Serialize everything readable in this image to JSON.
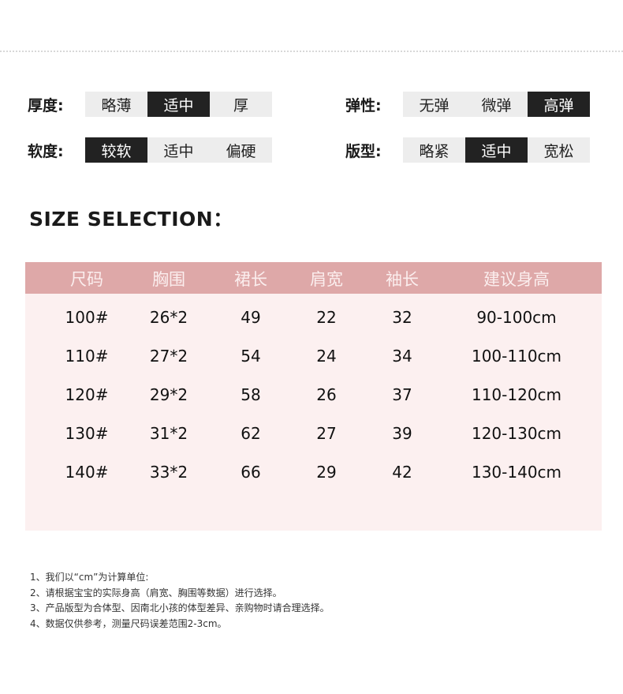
{
  "attributes": {
    "left": [
      {
        "label": "厚度:",
        "options": [
          "略薄",
          "适中",
          "厚"
        ],
        "selected": 1
      },
      {
        "label": "软度:",
        "options": [
          "较软",
          "适中",
          "偏硬"
        ],
        "selected": 0
      }
    ],
    "right": [
      {
        "label": "弹性:",
        "options": [
          "无弹",
          "微弹",
          "高弹"
        ],
        "selected": 2
      },
      {
        "label": "版型:",
        "options": [
          "略紧",
          "适中",
          "宽松"
        ],
        "selected": 1
      }
    ]
  },
  "size_title": "SIZE SELECTION：",
  "table": {
    "headers": [
      "尺码",
      "胸围",
      "裙长",
      "肩宽",
      "袖长",
      "建议身高"
    ],
    "rows": [
      [
        "100#",
        "26*2",
        "49",
        "22",
        "32",
        "90-100cm"
      ],
      [
        "110#",
        "27*2",
        "54",
        "24",
        "34",
        "100-110cm"
      ],
      [
        "120#",
        "29*2",
        "58",
        "26",
        "37",
        "110-120cm"
      ],
      [
        "130#",
        "31*2",
        "62",
        "27",
        "39",
        "120-130cm"
      ],
      [
        "140#",
        "33*2",
        "66",
        "29",
        "42",
        "130-140cm"
      ]
    ]
  },
  "notes": [
    "1、我们以“cm”为计算单位:",
    "2、请根据宝宝的实际身高（肩宽、胸围等数据）进行选择。",
    "3、产品版型为合体型、因南北小孩的体型差异、亲购物时请合理选择。",
    "4、数据仅供参考，测量尺码误差范围2-3cm。"
  ],
  "colors": {
    "header": "#dea8a8",
    "body": "#fcf0f0",
    "selected": "#222222",
    "unselected": "#ededed"
  }
}
